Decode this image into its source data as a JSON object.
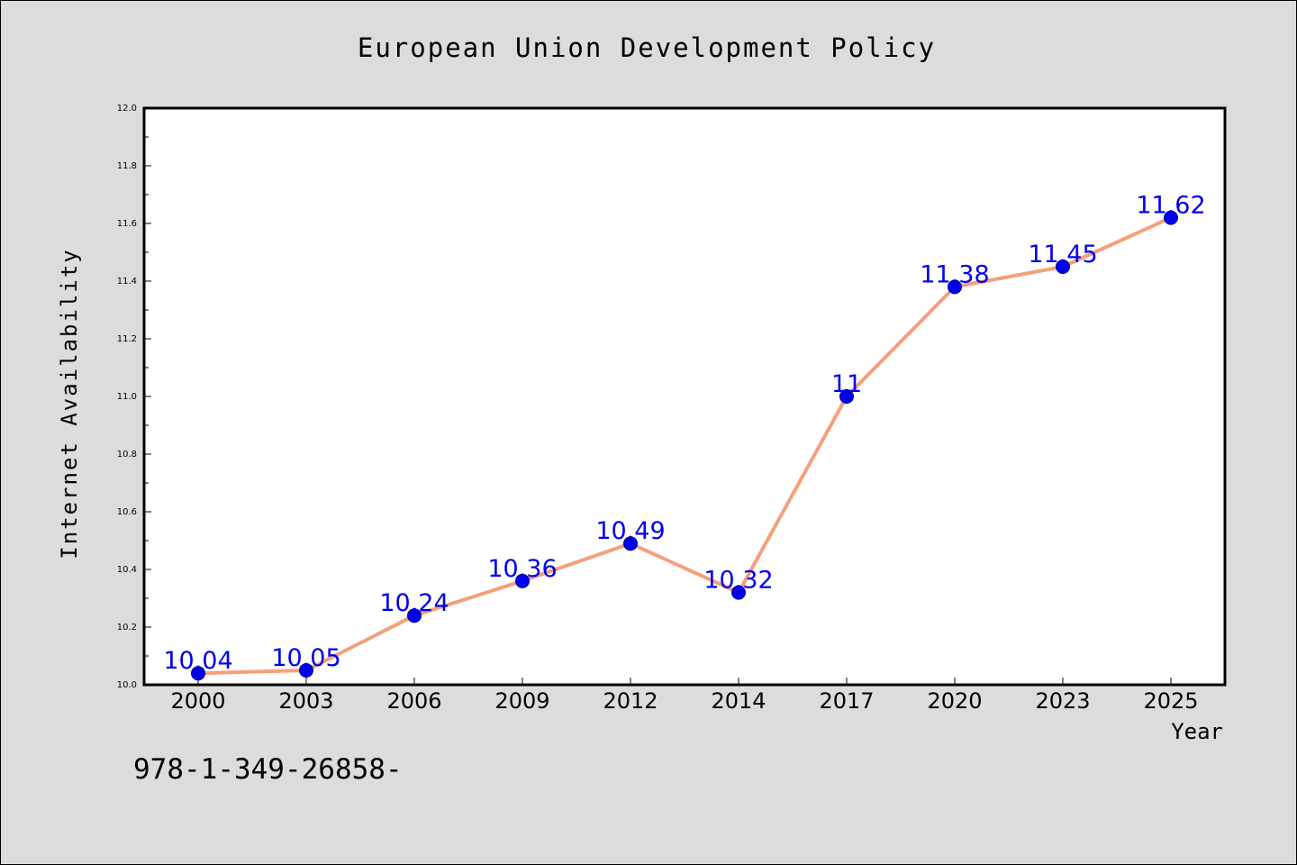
{
  "chart_data": {
    "type": "line",
    "title": "European Union Development Policy",
    "xlabel": "Year",
    "ylabel": "Internet Availability",
    "categories": [
      "2000",
      "2003",
      "2006",
      "2009",
      "2012",
      "2014",
      "2017",
      "2020",
      "2023",
      "2025"
    ],
    "series": [
      {
        "values": [
          10.04,
          10.05,
          10.24,
          10.36,
          10.49,
          10.32,
          11.0,
          11.38,
          11.45,
          11.62
        ],
        "data_labels": [
          "10.04",
          "10.05",
          "10.24",
          "10.36",
          "10.49",
          "10.32",
          "11",
          "11.38",
          "11.45",
          "11.62"
        ],
        "line_color": "#f4a07a",
        "marker_color": "#0000ee"
      }
    ],
    "ylim": [
      10.0,
      12.0
    ],
    "y_ticks": [
      "10.0",
      "10.2",
      "10.4",
      "10.6",
      "10.8",
      "11.0",
      "11.2",
      "11.4",
      "11.6",
      "11.8",
      "12.0"
    ],
    "grid": false,
    "label_color": "#0000ee"
  },
  "footer_text": "978-1-349-26858-",
  "colors": {
    "background": "#dcdcdc",
    "plot_background": "#ffffff"
  }
}
